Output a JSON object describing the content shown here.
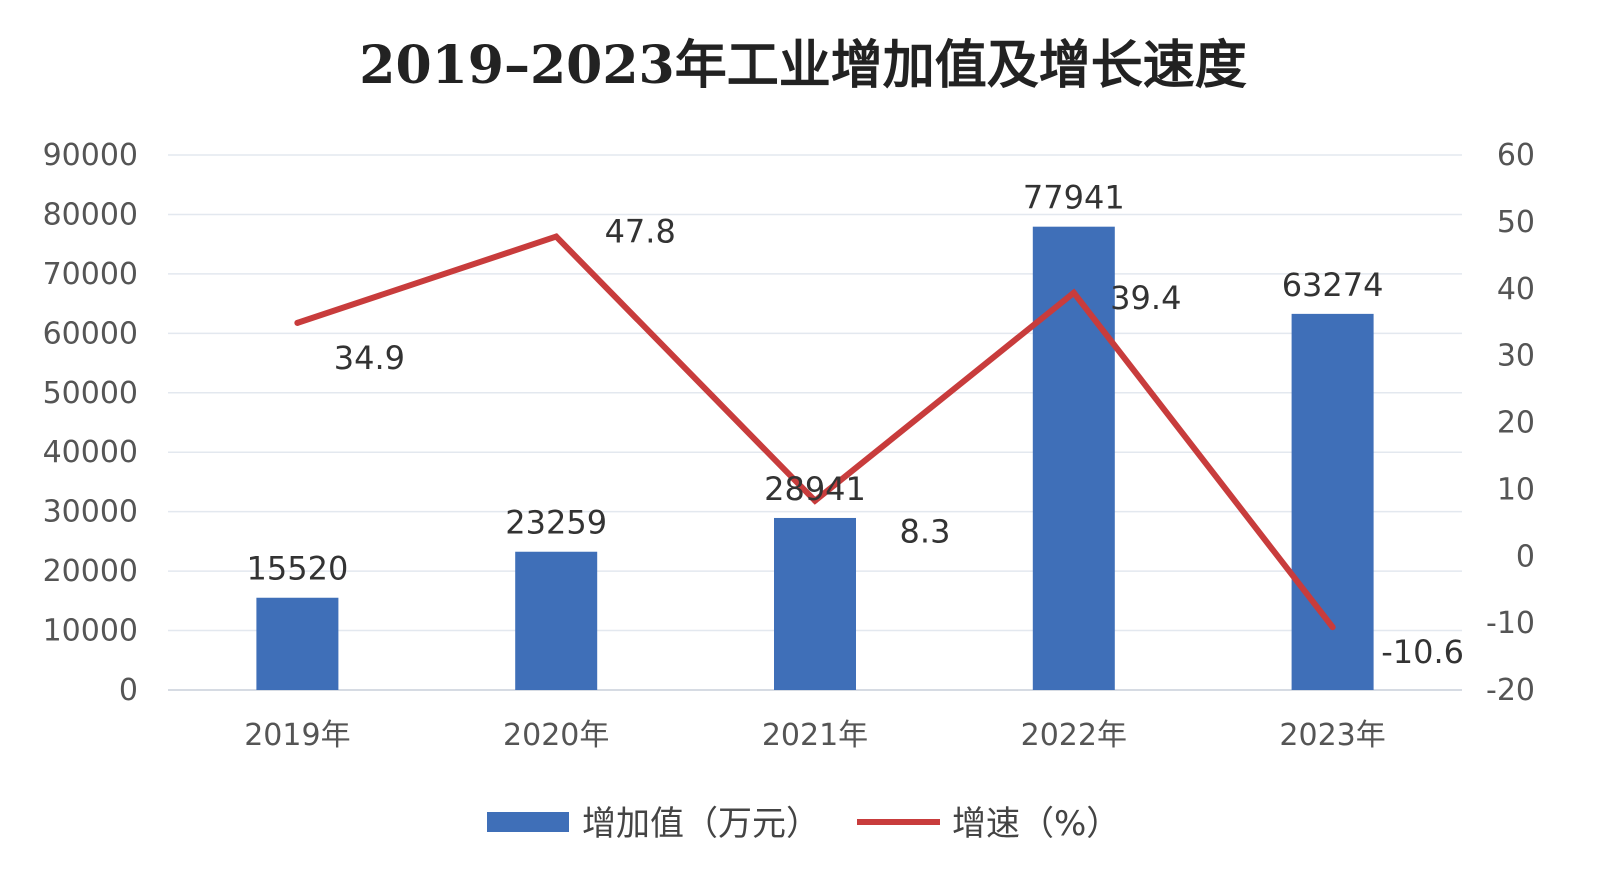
{
  "chart_data": {
    "type": "bar",
    "title": "2019–2023年工业增加值及增长速度",
    "categories": [
      "2019年",
      "2020年",
      "2021年",
      "2022年",
      "2023年"
    ],
    "series": [
      {
        "name": "增加值（万元）",
        "type": "bar",
        "axis": "left",
        "color": "#3f6fb8",
        "values": [
          15520,
          23259,
          28941,
          77941,
          63274
        ]
      },
      {
        "name": "增速（%）",
        "type": "line",
        "axis": "right",
        "color": "#c83c3c",
        "values": [
          34.9,
          47.8,
          8.3,
          39.4,
          -10.6
        ]
      }
    ],
    "y_left": {
      "min": 0,
      "max": 90000,
      "ticks": [
        "0",
        "10000",
        "20000",
        "30000",
        "40000",
        "50000",
        "60000",
        "70000",
        "80000",
        "90000"
      ]
    },
    "y_right": {
      "min": -20,
      "max": 60,
      "ticks": [
        "-20",
        "-10",
        "0",
        "10",
        "20",
        "30",
        "40",
        "50",
        "60"
      ]
    },
    "grid": true,
    "legend_position": "bottom",
    "gridline_color": "#e3e8ef",
    "axis_color": "#d6dbe3"
  }
}
